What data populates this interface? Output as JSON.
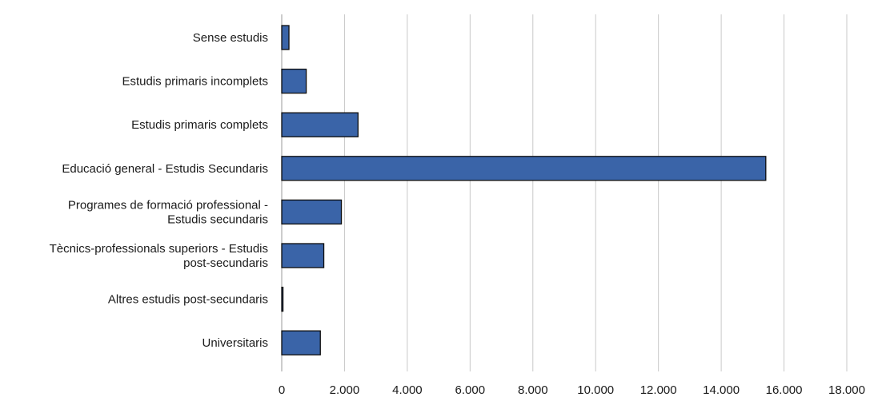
{
  "chart_data": {
    "type": "bar",
    "orientation": "horizontal",
    "categories": [
      [
        "Sense estudis"
      ],
      [
        "Estudis primaris incomplets"
      ],
      [
        "Estudis primaris complets"
      ],
      [
        "Educació general - Estudis Secundaris"
      ],
      [
        "Programes de formació professional -",
        "Estudis secundaris"
      ],
      [
        "Tècnics-professionals superiors - Estudis",
        "post-secundaris"
      ],
      [
        "Altres estudis post-secundaris"
      ],
      [
        "Universitaris"
      ]
    ],
    "values": [
      230,
      780,
      2430,
      15420,
      1900,
      1340,
      40,
      1230
    ],
    "xlim": [
      0,
      18000
    ],
    "xticks": [
      0,
      2000,
      4000,
      6000,
      8000,
      10000,
      12000,
      14000,
      16000,
      18000
    ],
    "xtick_labels": [
      "0",
      "2.000",
      "4.000",
      "6.000",
      "8.000",
      "10.000",
      "12.000",
      "14.000",
      "16.000",
      "18.000"
    ],
    "grid": "vertical",
    "bar_color": "#3a64a8",
    "bar_edge_color": "#0d0d0d",
    "grid_color": "#c8c8c8"
  }
}
